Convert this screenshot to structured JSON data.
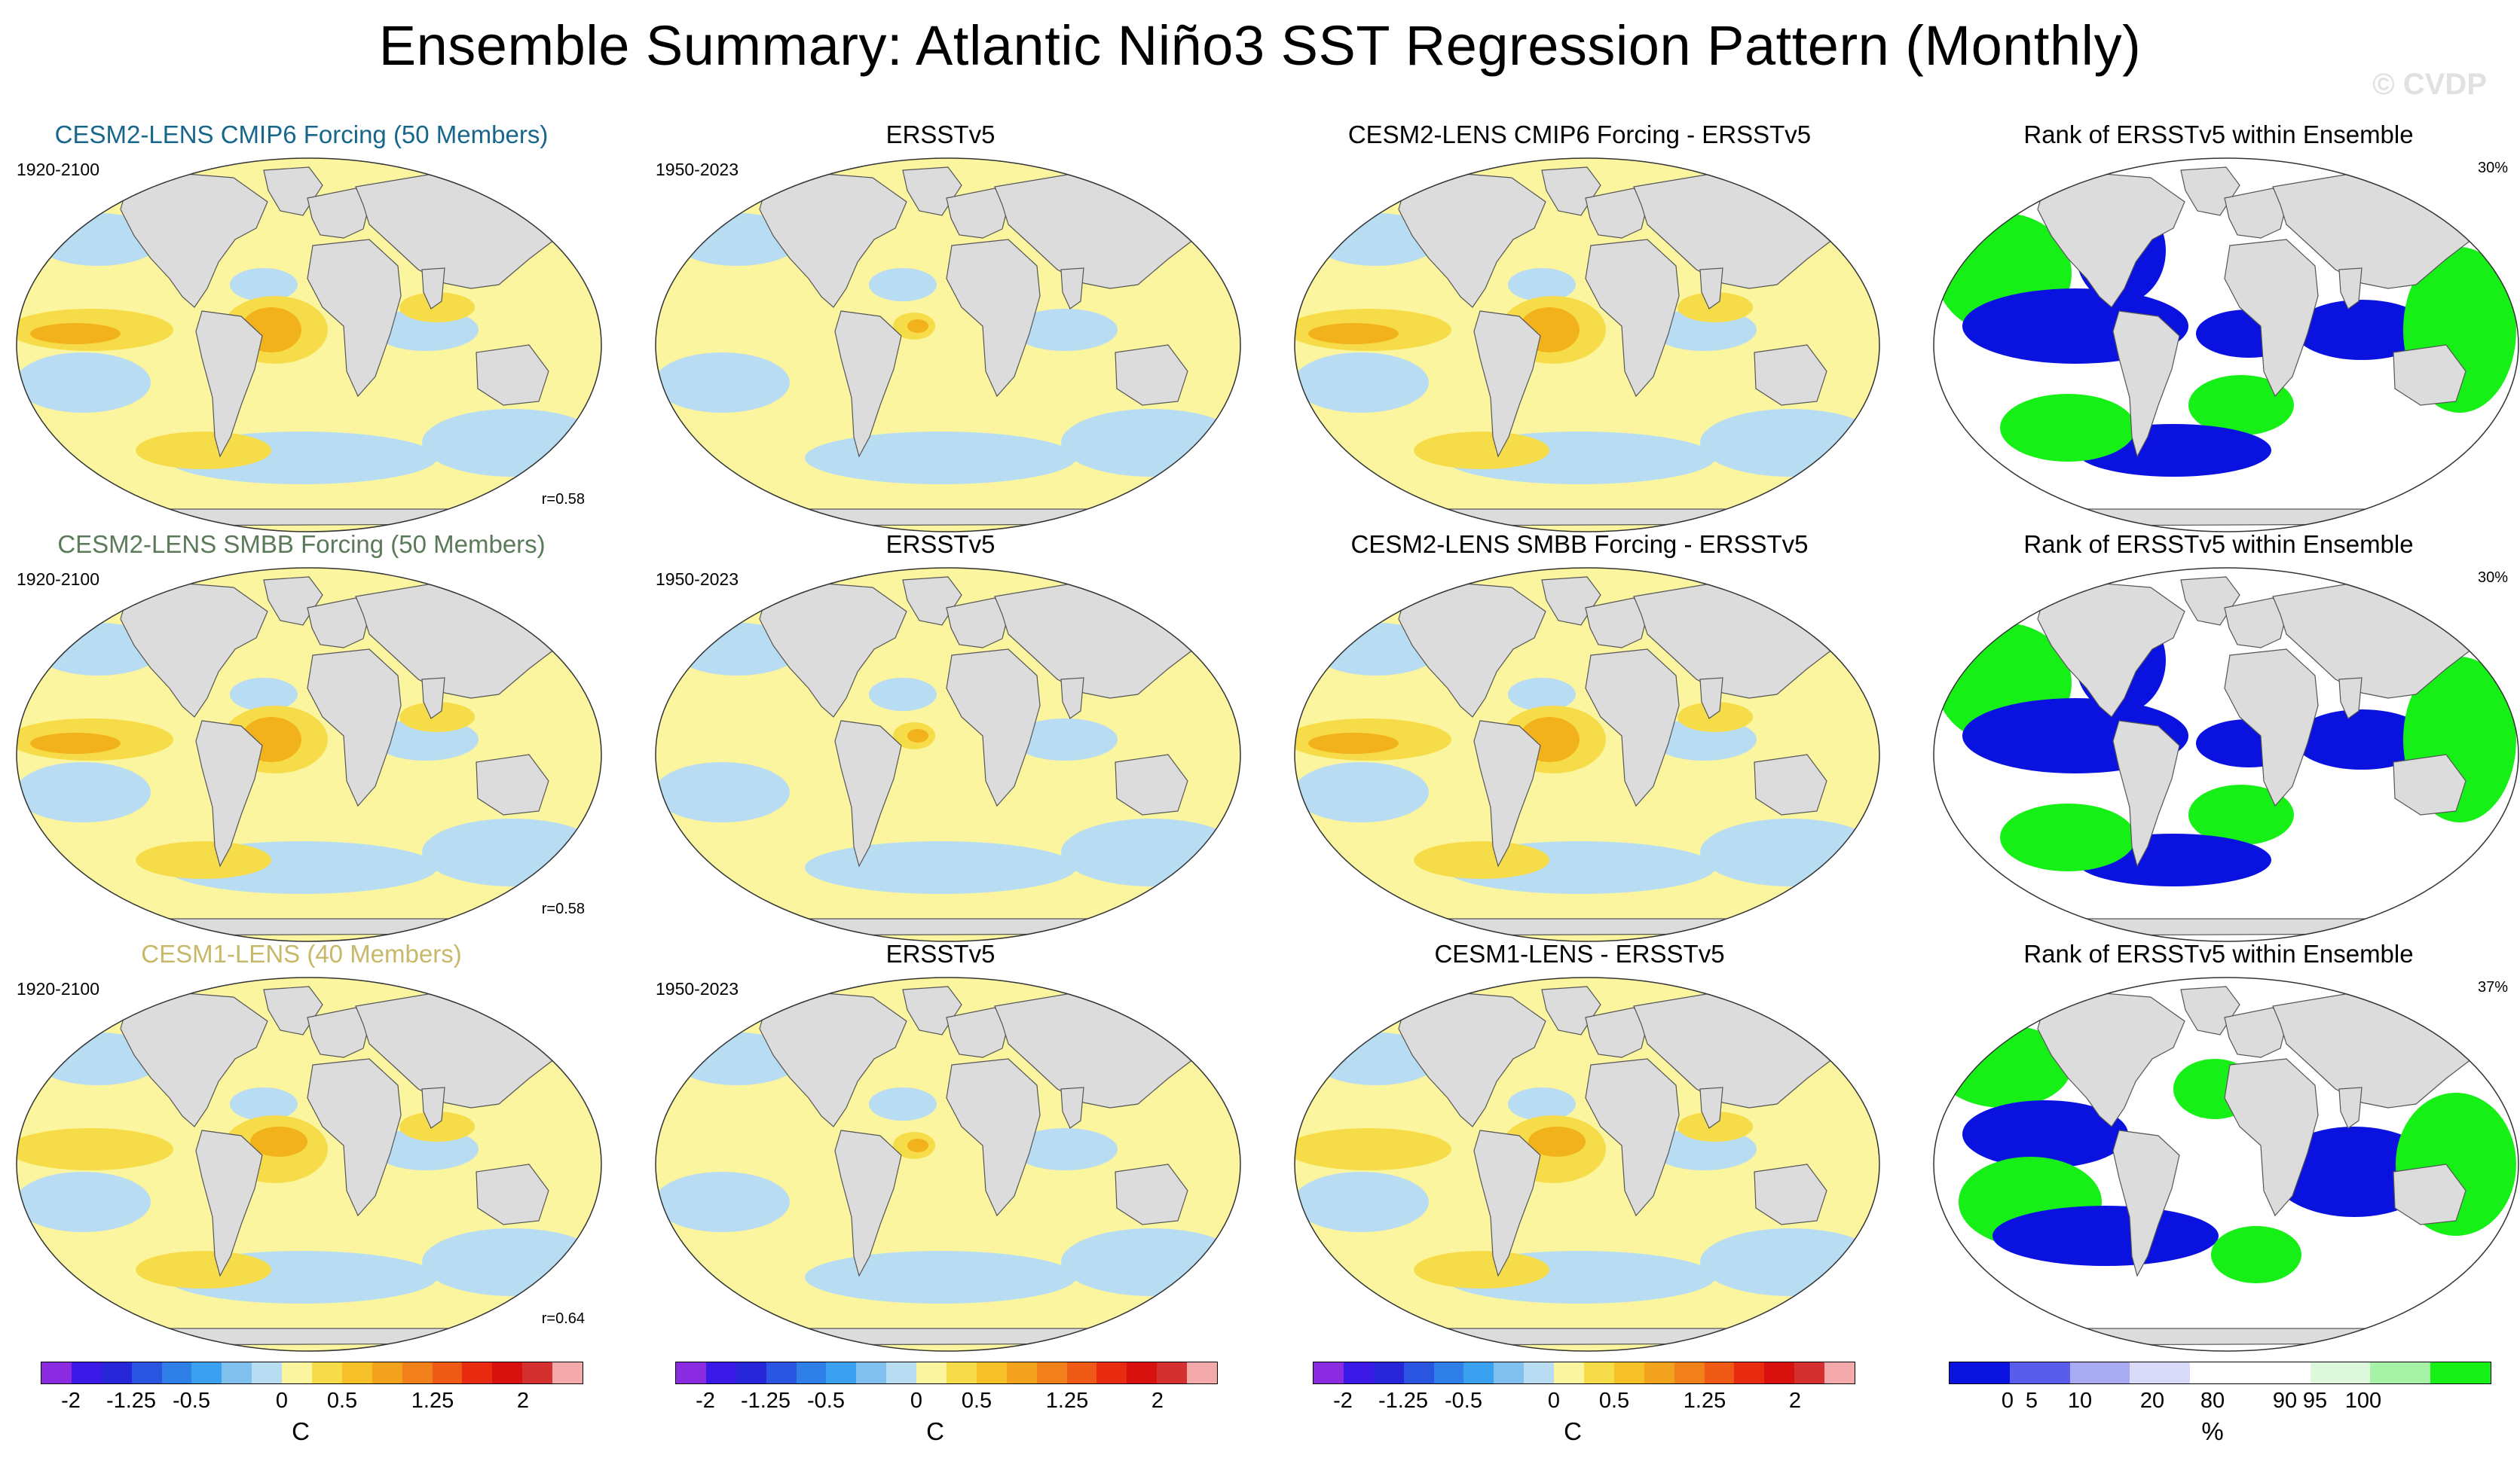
{
  "title": "Ensemble Summary: Atlantic Niño3 SST Regression Pattern (Monthly)",
  "watermark": "© CVDP",
  "colors": {
    "row1_title": "#17668c",
    "row2_title": "#5a7a5a",
    "row3_title": "#c8b86a",
    "land": "#dcdcdc",
    "ocean_light_blue": "#b8dcf2",
    "ocean_pale_yellow": "#fbf5a0",
    "ocean_yellow": "#f7dc4a",
    "ocean_orange": "#f2b21c",
    "rank_blue": "#0a12e0",
    "rank_green": "#16f016"
  },
  "rows": [
    {
      "ensemble": {
        "title": "CESM2-LENS CMIP6 Forcing (50 Members)",
        "years": "1920-2100",
        "corr": "r=0.58"
      },
      "obs": {
        "title": "ERSSTv5",
        "years": "1950-2023"
      },
      "diff": {
        "title": "CESM2-LENS CMIP6 Forcing - ERSSTv5"
      },
      "rank": {
        "title": "Rank of ERSSTv5 within Ensemble",
        "pct": "30%"
      }
    },
    {
      "ensemble": {
        "title": "CESM2-LENS SMBB Forcing (50 Members)",
        "years": "1920-2100",
        "corr": "r=0.58"
      },
      "obs": {
        "title": "ERSSTv5",
        "years": "1950-2023"
      },
      "diff": {
        "title": "CESM2-LENS SMBB Forcing - ERSSTv5"
      },
      "rank": {
        "title": "Rank of ERSSTv5 within Ensemble",
        "pct": "30%"
      }
    },
    {
      "ensemble": {
        "title": "CESM1-LENS (40 Members)",
        "years": "1920-2100",
        "corr": "r=0.64"
      },
      "obs": {
        "title": "ERSSTv5",
        "years": "1950-2023"
      },
      "diff": {
        "title": "CESM1-LENS - ERSSTv5"
      },
      "rank": {
        "title": "Rank of ERSSTv5 within Ensemble",
        "pct": "37%"
      }
    }
  ],
  "colorbar_sst": {
    "unit": "C",
    "ticks": [
      "-2",
      "-1.25",
      "-0.5",
      "0",
      "0.5",
      "1.25",
      "2"
    ],
    "colors": [
      "#8a2be2",
      "#3a18e6",
      "#2626d8",
      "#2a55e0",
      "#2f7fe8",
      "#3aa0f0",
      "#7fc0ee",
      "#b8dcf2",
      "#fbf5a0",
      "#f7dc4a",
      "#f5c028",
      "#f2a21c",
      "#f2801a",
      "#ee5a16",
      "#e82a10",
      "#d8100e",
      "#d43030",
      "#f4aaaa"
    ]
  },
  "colorbar_rank": {
    "unit": "%",
    "ticks": [
      "0",
      "5",
      "10",
      "20",
      "80",
      "90",
      "95",
      "100"
    ],
    "colors": [
      "#0a12e0",
      "#5a5cec",
      "#a8aaf2",
      "#d8daf8",
      "#ffffff",
      "#ffffff",
      "#ddf8dd",
      "#a8f2a8",
      "#16f016"
    ]
  }
}
